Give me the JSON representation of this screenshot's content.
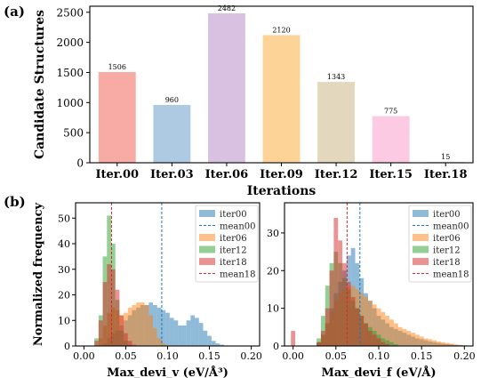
{
  "figure": {
    "panel_a_label": "(a)",
    "panel_b_label": "(b)"
  },
  "chart_data": [
    {
      "type": "bar",
      "panel": "(a)",
      "categories": [
        "Iter.00",
        "Iter.03",
        "Iter.06",
        "Iter.09",
        "Iter.12",
        "Iter.15",
        "Iter.18"
      ],
      "values": [
        1506,
        960,
        2482,
        2120,
        1343,
        775,
        15
      ],
      "data_labels": [
        "1506",
        "960",
        "2482",
        "2120",
        "1343",
        "775",
        "15"
      ],
      "colors": [
        "#f8aaa4",
        "#aecae3",
        "#d9c2e1",
        "#fdd397",
        "#e3d7bd",
        "#fccbe3",
        "#dfdfdf"
      ],
      "xlabel": "Iterations",
      "ylabel": "Candidate Structures",
      "ylim": [
        0,
        2600
      ],
      "yticks": [
        0,
        500,
        1000,
        1500,
        2000,
        2500
      ],
      "grid": false
    },
    {
      "type": "histogram",
      "panel": "(b) left",
      "xlabel": "Max_devi_v (eV/Å³)",
      "ylabel": "Normalized frequency",
      "xlim": [
        -0.01,
        0.21
      ],
      "ylim": [
        0,
        56
      ],
      "xticks": [
        "0.00",
        "0.05",
        "0.10",
        "0.15",
        "0.20"
      ],
      "xtick_values": [
        0,
        0.05,
        0.1,
        0.15,
        0.2
      ],
      "yticks": [
        "0",
        "10",
        "20",
        "30",
        "40",
        "50"
      ],
      "ytick_values": [
        0,
        10,
        20,
        30,
        40,
        50
      ],
      "legend_position": "upper right",
      "legend": [
        "iter00",
        "mean00",
        "iter06",
        "iter12",
        "iter18",
        "mean18"
      ],
      "series": [
        {
          "name": "iter00",
          "color": "#1f77b4",
          "mean": 0.093,
          "x": [
            0.025,
            0.03,
            0.035,
            0.04,
            0.045,
            0.05,
            0.055,
            0.06,
            0.065,
            0.07,
            0.075,
            0.08,
            0.085,
            0.09,
            0.095,
            0.1,
            0.105,
            0.11,
            0.115,
            0.12,
            0.125,
            0.13,
            0.135,
            0.14,
            0.145,
            0.15,
            0.155,
            0.16,
            0.165,
            0.17
          ],
          "y": [
            1,
            3,
            5,
            6,
            8,
            10,
            12,
            14,
            15,
            16,
            16,
            17,
            16,
            15,
            14,
            13,
            11,
            10,
            8,
            8,
            10,
            12,
            11,
            9,
            6,
            4,
            2,
            1,
            0.5,
            0.2
          ]
        },
        {
          "name": "iter06",
          "color": "#ff7f0e",
          "x": [
            0.02,
            0.025,
            0.03,
            0.035,
            0.04,
            0.045,
            0.05,
            0.055,
            0.06,
            0.065,
            0.07,
            0.075,
            0.08,
            0.085,
            0.09,
            0.095,
            0.1
          ],
          "y": [
            3,
            8,
            13,
            15,
            14,
            12,
            13,
            15,
            16,
            17,
            17,
            16,
            12,
            7,
            3,
            1,
            0.3
          ]
        },
        {
          "name": "iter12",
          "color": "#2ca02c",
          "x": [
            0.015,
            0.02,
            0.025,
            0.03,
            0.035,
            0.04,
            0.045,
            0.05,
            0.055
          ],
          "y": [
            3,
            12,
            35,
            51,
            40,
            18,
            6,
            2,
            0.5
          ]
        },
        {
          "name": "iter18",
          "color": "#d62728",
          "mean": 0.033,
          "x": [
            0.015,
            0.02,
            0.025,
            0.03,
            0.035,
            0.04,
            0.045,
            0.05,
            0.055,
            0.06
          ],
          "y": [
            2,
            10,
            25,
            32,
            30,
            22,
            12,
            5,
            2,
            0.5
          ]
        }
      ]
    },
    {
      "type": "histogram",
      "panel": "(b) right",
      "xlabel": "Max_devi_f (eV/Å)",
      "ylabel": "",
      "xlim": [
        -0.01,
        0.21
      ],
      "ylim": [
        0,
        38
      ],
      "xticks": [
        "0.00",
        "0.05",
        "0.10",
        "0.15",
        "0.20"
      ],
      "xtick_values": [
        0,
        0.05,
        0.1,
        0.15,
        0.2
      ],
      "yticks": [
        "0",
        "10",
        "20",
        "30"
      ],
      "ytick_values": [
        0,
        10,
        20,
        30
      ],
      "legend_position": "upper right",
      "legend": [
        "iter00",
        "mean00",
        "iter06",
        "iter12",
        "iter18",
        "mean18"
      ],
      "series": [
        {
          "name": "iter00",
          "color": "#1f77b4",
          "mean": 0.078,
          "x": [
            0.03,
            0.035,
            0.04,
            0.045,
            0.05,
            0.055,
            0.06,
            0.065,
            0.07,
            0.075,
            0.08,
            0.085,
            0.09,
            0.095,
            0.1,
            0.105,
            0.11,
            0.115,
            0.12,
            0.125,
            0.13,
            0.135,
            0.14,
            0.145,
            0.15,
            0.155,
            0.16,
            0.165,
            0.17,
            0.175,
            0.18,
            0.185,
            0.19,
            0.195
          ],
          "y": [
            1,
            3,
            6,
            10,
            14,
            17,
            20,
            24,
            26,
            22,
            18,
            14,
            12,
            10,
            8,
            7,
            6,
            5,
            4.5,
            4,
            3.5,
            3,
            2.5,
            2,
            1.8,
            1.5,
            1.2,
            1,
            0.8,
            0.6,
            0.5,
            0.4,
            0.3,
            0.2
          ]
        },
        {
          "name": "iter06",
          "color": "#ff7f0e",
          "x": [
            0.03,
            0.035,
            0.04,
            0.045,
            0.05,
            0.055,
            0.06,
            0.065,
            0.07,
            0.075,
            0.08,
            0.085,
            0.09,
            0.095,
            0.1,
            0.105,
            0.11,
            0.115,
            0.12,
            0.125,
            0.13,
            0.135,
            0.14,
            0.145,
            0.15,
            0.155,
            0.16,
            0.165,
            0.17,
            0.175,
            0.18,
            0.185,
            0.19,
            0.195,
            0.2
          ],
          "y": [
            1,
            3,
            6,
            9,
            12,
            14,
            15,
            16,
            16,
            15,
            14,
            13,
            12,
            11,
            10,
            9,
            8,
            7,
            6,
            5,
            4.5,
            4,
            3.5,
            3,
            2.5,
            2,
            1.8,
            1.5,
            1.2,
            1,
            0.8,
            0.6,
            0.4,
            0.3,
            0.2
          ]
        },
        {
          "name": "iter12",
          "color": "#2ca02c",
          "x": [
            0.03,
            0.035,
            0.04,
            0.045,
            0.05,
            0.055,
            0.06,
            0.065,
            0.07,
            0.075,
            0.08,
            0.085,
            0.09,
            0.095,
            0.1,
            0.105,
            0.11,
            0.115,
            0.12
          ],
          "y": [
            2,
            8,
            16,
            22,
            25,
            22,
            18,
            15,
            12,
            10,
            8,
            6,
            5,
            4,
            3,
            2,
            1.5,
            1,
            0.5
          ]
        },
        {
          "name": "iter18",
          "color": "#d62728",
          "mean": 0.063,
          "x": [
            0.0,
            0.03,
            0.035,
            0.04,
            0.045,
            0.05,
            0.055,
            0.06,
            0.065,
            0.07,
            0.075,
            0.08,
            0.085,
            0.09,
            0.095,
            0.1,
            0.105,
            0.11
          ],
          "y": [
            4,
            1,
            4,
            10,
            20,
            34,
            28,
            22,
            17,
            13,
            10,
            8,
            6,
            4,
            3,
            2,
            1,
            0.5
          ]
        }
      ]
    }
  ]
}
